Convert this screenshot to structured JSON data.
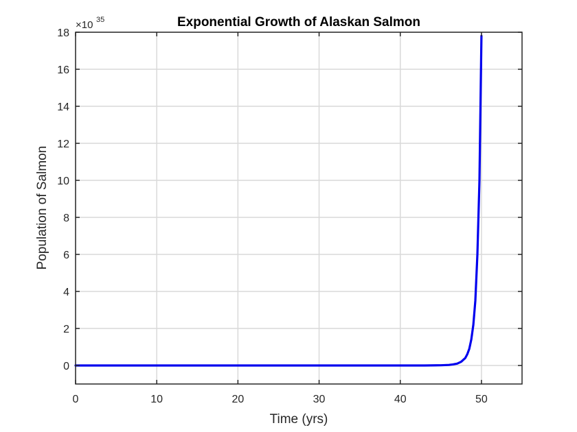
{
  "chart_data": {
    "type": "line",
    "title": "Exponential Growth of Alaskan Salmon",
    "xlabel": "Time (yrs)",
    "ylabel": "Population of Salmon",
    "xlim": [
      0,
      55
    ],
    "ylim": [
      -1,
      18
    ],
    "xticks": [
      "0",
      "10",
      "20",
      "30",
      "40",
      "50"
    ],
    "yticks": [
      "0",
      "2",
      "4",
      "6",
      "8",
      "10",
      "12",
      "14",
      "16",
      "18"
    ],
    "y_scale_multiplier": "×10",
    "y_scale_exponent": "35",
    "grid": true,
    "series": [
      {
        "color": "#0000ee",
        "x": [
          0,
          10,
          20,
          30,
          40,
          43,
          45,
          46,
          46.5,
          47,
          47.5,
          48,
          48.25,
          48.5,
          48.75,
          49,
          49.25,
          49.5,
          49.75,
          50
        ],
        "y": [
          0,
          0,
          0,
          0,
          0,
          0.001,
          0.01,
          0.03,
          0.06,
          0.1,
          0.2,
          0.4,
          0.6,
          0.9,
          1.4,
          2.2,
          3.5,
          6,
          10,
          17.8
        ]
      }
    ]
  }
}
